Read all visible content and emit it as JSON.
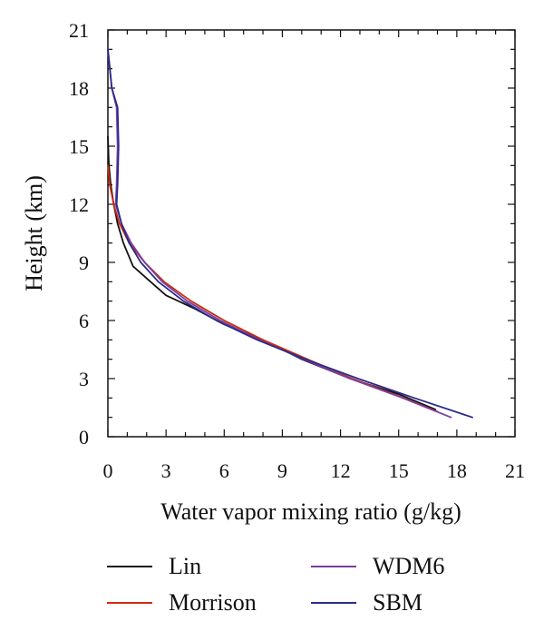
{
  "chart_data": {
    "type": "line",
    "title": "",
    "xlabel": "Water vapor mixing ratio (g/kg)",
    "ylabel": "Height (km)",
    "xlim": [
      0,
      21
    ],
    "ylim": [
      0,
      21
    ],
    "xticks": [
      "0",
      "3",
      "6",
      "9",
      "12",
      "15",
      "18",
      "21"
    ],
    "yticks": [
      "0",
      "3",
      "6",
      "9",
      "12",
      "15",
      "18",
      "21"
    ],
    "grid": false,
    "legend_position": "bottom",
    "series": [
      {
        "name": "Lin",
        "color": "#111111",
        "points": [
          [
            0.0,
            15.5
          ],
          [
            0.05,
            14.0
          ],
          [
            0.15,
            13.0
          ],
          [
            0.3,
            12.0
          ],
          [
            0.5,
            11.0
          ],
          [
            0.8,
            10.0
          ],
          [
            1.3,
            8.8
          ],
          [
            2.2,
            8.0
          ],
          [
            3.0,
            7.3
          ],
          [
            4.5,
            6.6
          ],
          [
            6.0,
            5.8
          ],
          [
            8.0,
            5.0
          ],
          [
            10.0,
            4.0
          ],
          [
            12.5,
            3.0
          ],
          [
            15.0,
            2.2
          ],
          [
            16.9,
            1.4
          ]
        ]
      },
      {
        "name": "Morrison",
        "color": "#d02a10",
        "points": [
          [
            0.0,
            14.0
          ],
          [
            0.1,
            13.0
          ],
          [
            0.3,
            12.0
          ],
          [
            0.6,
            11.0
          ],
          [
            1.1,
            10.0
          ],
          [
            1.9,
            9.0
          ],
          [
            2.9,
            8.0
          ],
          [
            4.3,
            7.0
          ],
          [
            6.0,
            6.0
          ],
          [
            8.0,
            5.0
          ],
          [
            10.3,
            4.0
          ],
          [
            12.6,
            3.0
          ],
          [
            15.0,
            2.1
          ],
          [
            17.0,
            1.3
          ]
        ]
      },
      {
        "name": "WDM6",
        "color": "#7a3fa0",
        "points": [
          [
            0.0,
            20.0
          ],
          [
            0.2,
            18.0
          ],
          [
            0.45,
            17.0
          ],
          [
            0.5,
            15.0
          ],
          [
            0.45,
            13.0
          ],
          [
            0.4,
            12.0
          ],
          [
            0.7,
            11.0
          ],
          [
            1.2,
            10.0
          ],
          [
            1.9,
            9.0
          ],
          [
            2.8,
            8.0
          ],
          [
            4.1,
            7.0
          ],
          [
            5.8,
            6.0
          ],
          [
            7.8,
            5.0
          ],
          [
            10.1,
            4.0
          ],
          [
            12.5,
            3.0
          ],
          [
            15.2,
            2.0
          ],
          [
            17.7,
            1.0
          ]
        ]
      },
      {
        "name": "SBM",
        "color": "#2a2a8c",
        "points": [
          [
            0.0,
            20.0
          ],
          [
            0.2,
            18.0
          ],
          [
            0.5,
            17.0
          ],
          [
            0.55,
            15.0
          ],
          [
            0.5,
            13.0
          ],
          [
            0.45,
            12.0
          ],
          [
            0.7,
            11.0
          ],
          [
            1.1,
            10.0
          ],
          [
            1.7,
            9.0
          ],
          [
            2.6,
            8.0
          ],
          [
            3.9,
            7.0
          ],
          [
            5.6,
            6.0
          ],
          [
            7.7,
            5.0
          ],
          [
            10.2,
            4.0
          ],
          [
            12.9,
            3.0
          ],
          [
            15.8,
            2.0
          ],
          [
            18.8,
            1.0
          ]
        ]
      }
    ]
  }
}
